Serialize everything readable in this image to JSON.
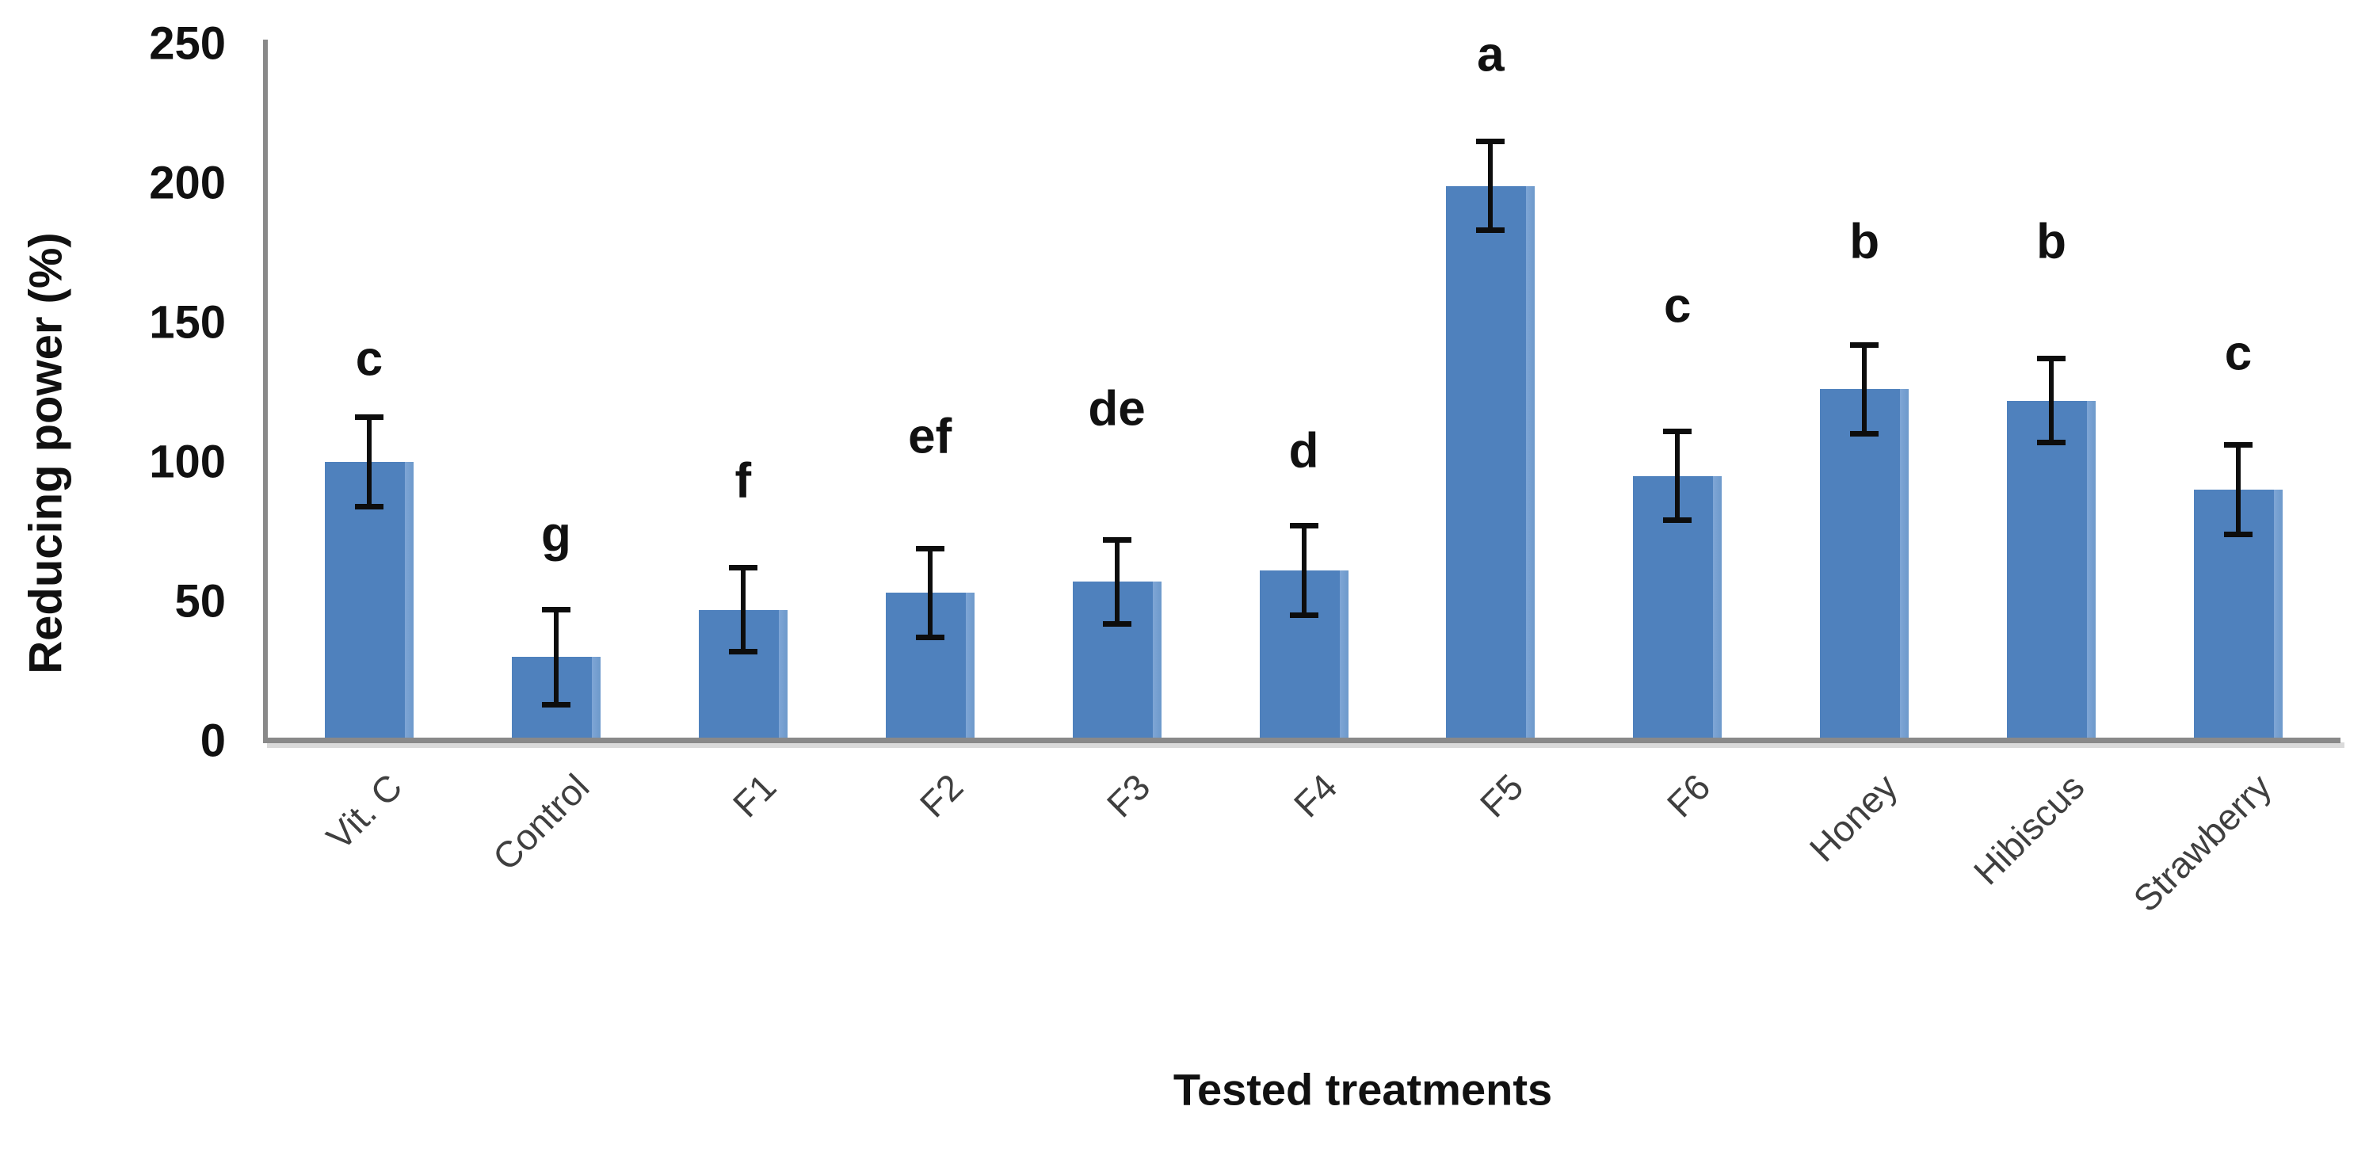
{
  "figure": {
    "background": "#ffffff"
  },
  "chart_data": {
    "type": "bar",
    "title": "",
    "xlabel": "Tested treatments",
    "ylabel": "Reducing power (%)",
    "ylim": [
      0,
      250
    ],
    "yticks": [
      0,
      50,
      100,
      150,
      200,
      250
    ],
    "grid": "off",
    "legend": "none",
    "categories": [
      "Vit. C",
      "Control",
      "F1",
      "F2",
      "F3",
      "F4",
      "F5",
      "F6",
      "Honey",
      "Hibiscus",
      "Strawberry"
    ],
    "values": [
      100,
      30,
      47,
      53,
      57,
      61,
      199,
      95,
      126,
      122,
      90
    ],
    "errors": [
      15,
      16,
      14,
      15,
      14,
      15,
      15,
      15,
      15,
      14,
      15
    ],
    "sig_letters": [
      "c",
      "g",
      "f",
      "ef",
      "de",
      "d",
      "a",
      "c",
      "b",
      "b",
      "c"
    ],
    "bar_color": "#4F81BD",
    "bar_edge_highlight": "#7FA6D6",
    "axis_line_color": "#898989",
    "error_bar_color": "#0D0D0D",
    "y_tick_label_color": "#111111",
    "x_tick_label_color": "#3F3F3F"
  }
}
